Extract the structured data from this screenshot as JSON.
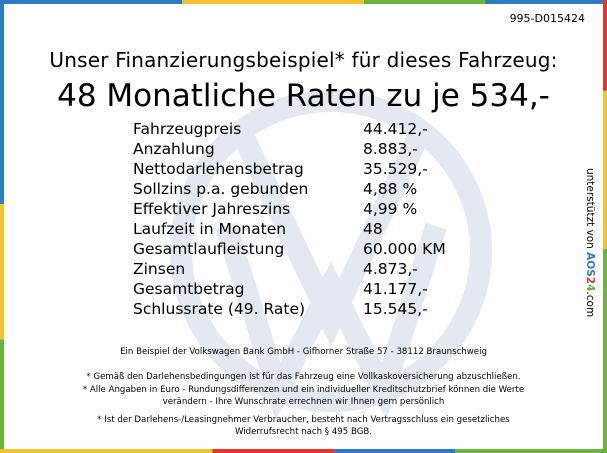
{
  "colors": {
    "blue": "#2e7bbf",
    "yellow": "#f2c230",
    "green": "#6bb33f",
    "red": "#e3342f"
  },
  "reference_code": "995-D015424",
  "headline": "Unser Finanzierungsbeispiel* für dieses Fahrzeug:",
  "monthly_line": "48 Monatliche Raten zu je 534,-",
  "terms": [
    {
      "label": "Fahrzeugpreis",
      "value": "44.412,-"
    },
    {
      "label": "Anzahlung",
      "value": "8.883,-"
    },
    {
      "label": "Nettodarlehensbetrag",
      "value": "35.529,-"
    },
    {
      "label": "Sollzins p.a. gebunden",
      "value": "4,88 %"
    },
    {
      "label": "Effektiver Jahreszins",
      "value": "4,99 %"
    },
    {
      "label": "Laufzeit in Monaten",
      "value": "48"
    },
    {
      "label": "Gesamtlaufleistung",
      "value": "60.000 KM"
    },
    {
      "label": "Zinsen",
      "value": "4.873,-"
    },
    {
      "label": "Gesamtbetrag",
      "value": "41.177,-"
    },
    {
      "label": "Schlussrate (49. Rate)",
      "value": "15.545,-"
    }
  ],
  "side_note": {
    "prefix": "unterstützt von",
    "brand_a": "AOS",
    "brand_b": "2",
    "brand_c": "4",
    "suffix": ".com"
  },
  "lender_line": "Ein Beispiel der Volkswagen Bank GmbH - Gifhorner Straße 57 - 38112 Braunschweig",
  "footnotes": [
    "* Gemäß den Darlehensbedingungen ist für das Fahrzeug eine Vollkaskoversicherung abzuschließen.",
    "* Alle Angaben in Euro - Rundungsdifferenzen und ein individueller Kreditschutzbrief können die Werte",
    "verändern - Ihre Wunschrate errechnen wir Ihnen gern persönlich",
    "* Ist der Darlehens-/Leasingnehmer Verbraucher, besteht nach Vertragsschluss ein gesetzliches",
    "Widerrufsrecht nach § 495 BGB."
  ],
  "watermark_icon": "vw-logo-icon"
}
